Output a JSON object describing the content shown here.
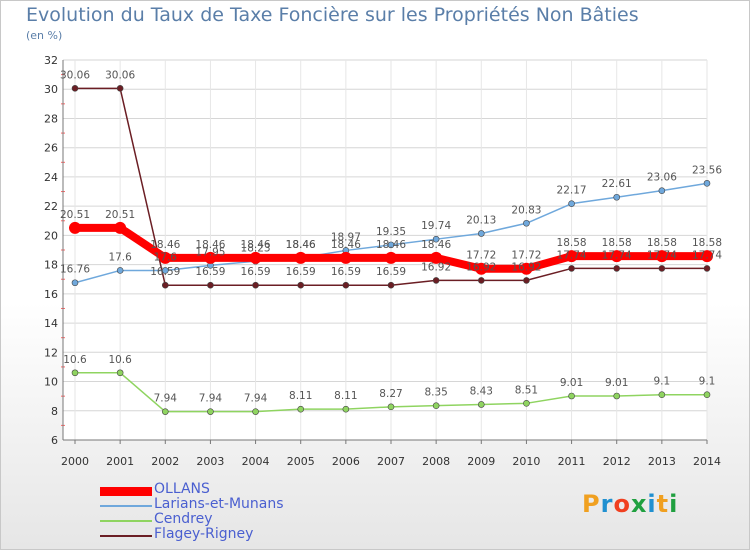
{
  "title": "Evolution du Taux de Taxe Foncière sur les Propriétés Non Bâties",
  "unit_label": "(en %)",
  "logo": "Proxiti",
  "logo_colors": [
    "#f0a020",
    "#2090d0",
    "#f04020",
    "#20a040",
    "#2090d0",
    "#f0a020",
    "#20a040"
  ],
  "chart_data": {
    "type": "line",
    "title": "Evolution du Taux de Taxe Foncière sur les Propriétés Non Bâties",
    "ylabel": "(en %)",
    "xlabel": "",
    "x": [
      "2000",
      "2001",
      "2002",
      "2003",
      "2004",
      "2005",
      "2006",
      "2007",
      "2008",
      "2009",
      "2010",
      "2011",
      "2012",
      "2013",
      "2014"
    ],
    "ylim": [
      6,
      32
    ],
    "yticks": [
      "6",
      "8",
      "10",
      "12",
      "14",
      "16",
      "18",
      "20",
      "22",
      "24",
      "26",
      "28",
      "30",
      "32"
    ],
    "grid": true,
    "legend_position": "bottom-left",
    "series": [
      {
        "name": "Flagey-Rigney",
        "color": "#6b1e24",
        "values": [
          30.06,
          30.06,
          16.59,
          16.59,
          16.59,
          16.59,
          16.59,
          16.59,
          16.92,
          16.92,
          16.92,
          17.74,
          17.74,
          17.74,
          17.74
        ],
        "labels": [
          "30.06",
          "30.06",
          "16.59",
          "16.59",
          "16.59",
          "16.59",
          "16.59",
          "16.59",
          "16.92",
          "16.92",
          "16.92",
          "17.74",
          "17.74",
          "17.74",
          "17.74"
        ]
      },
      {
        "name": "Larians-et-Munans",
        "color": "#6fa8dc",
        "values": [
          16.76,
          17.6,
          17.6,
          17.95,
          18.23,
          18.46,
          18.97,
          19.35,
          19.74,
          20.13,
          20.83,
          22.17,
          22.61,
          23.06,
          23.56
        ],
        "labels": [
          "16.76",
          "17.6",
          "17.6",
          "17.95",
          "18.23",
          "18.46",
          "18.97",
          "19.35",
          "19.74",
          "20.13",
          "20.83",
          "22.17",
          "22.61",
          "23.06",
          "23.56"
        ]
      },
      {
        "name": "Cendrey",
        "color": "#8fd460",
        "values": [
          10.6,
          10.6,
          7.94,
          7.94,
          7.94,
          8.11,
          8.11,
          8.27,
          8.35,
          8.43,
          8.51,
          9.01,
          9.01,
          9.1,
          9.1
        ],
        "labels": [
          "10.6",
          "10.6",
          "7.94",
          "7.94",
          "7.94",
          "8.11",
          "8.11",
          "8.27",
          "8.35",
          "8.43",
          "8.51",
          "9.01",
          "9.01",
          "9.1",
          "9.1"
        ]
      },
      {
        "name": "OLLANS",
        "color": "#ff0000",
        "values": [
          20.51,
          20.51,
          18.46,
          18.46,
          18.46,
          18.46,
          18.46,
          18.46,
          18.46,
          17.72,
          17.72,
          18.58,
          18.58,
          18.58,
          18.58
        ],
        "labels": [
          "20.51",
          "20.51",
          "18.46",
          "18.46",
          "18.46",
          "18.46",
          "18.46",
          "18.46",
          "18.46",
          "17.72",
          "17.72",
          "18.58",
          "18.58",
          "18.58",
          "18.58"
        ]
      }
    ],
    "legend": [
      "OLLANS",
      "Larians-et-Munans",
      "Cendrey",
      "Flagey-Rigney"
    ]
  }
}
